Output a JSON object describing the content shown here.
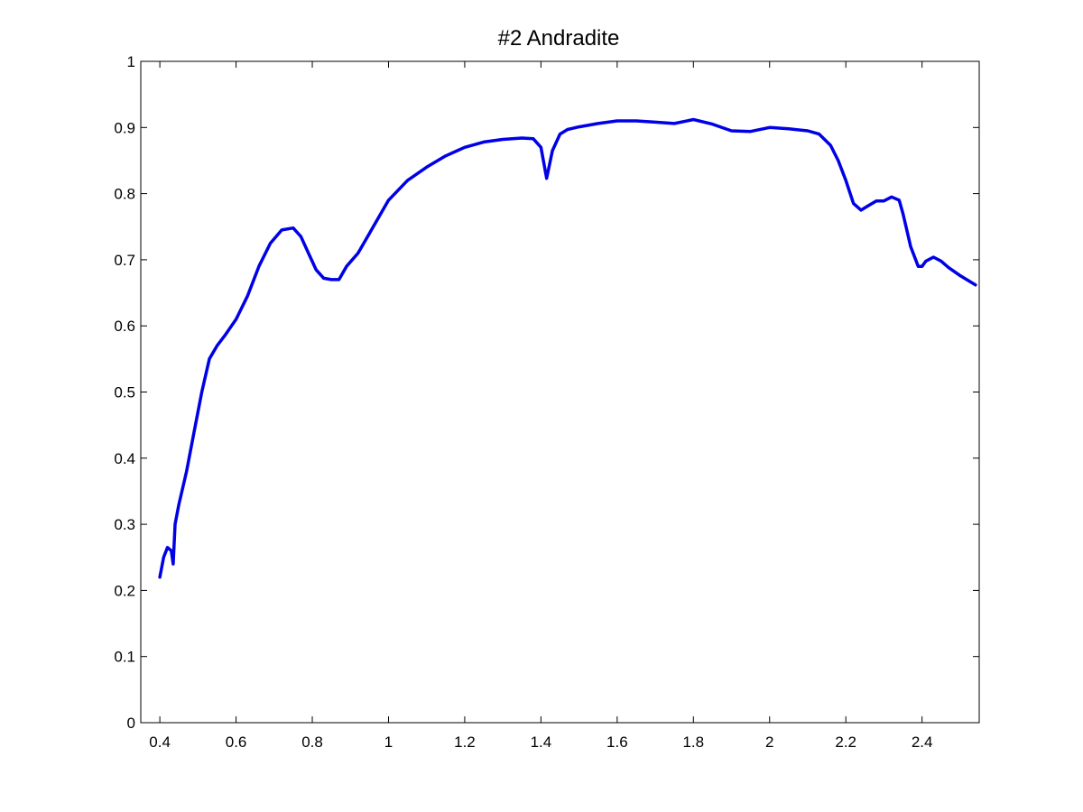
{
  "chart_data": {
    "type": "line",
    "title": "#2 Andradite",
    "xlabel": "",
    "ylabel": "",
    "xlim": [
      0.35,
      2.55
    ],
    "ylim": [
      0,
      1
    ],
    "x_ticks": [
      0.4,
      0.6,
      0.8,
      1,
      1.2,
      1.4,
      1.6,
      1.8,
      2,
      2.2,
      2.4
    ],
    "x_tick_labels": [
      "0.4",
      "0.6",
      "0.8",
      "1",
      "1.2",
      "1.4",
      "1.6",
      "1.8",
      "2",
      "2.2",
      "2.4"
    ],
    "y_ticks": [
      0,
      0.1,
      0.2,
      0.3,
      0.4,
      0.5,
      0.6,
      0.7,
      0.8,
      0.9,
      1
    ],
    "y_tick_labels": [
      "0",
      "0.1",
      "0.2",
      "0.3",
      "0.4",
      "0.5",
      "0.6",
      "0.7",
      "0.8",
      "0.9",
      "1"
    ],
    "grid": false,
    "legend": "none",
    "line_color": "#0000e6",
    "series": [
      {
        "x": [
          0.4,
          0.41,
          0.42,
          0.43,
          0.435,
          0.44,
          0.45,
          0.47,
          0.49,
          0.51,
          0.53,
          0.55,
          0.57,
          0.6,
          0.63,
          0.66,
          0.69,
          0.72,
          0.75,
          0.77,
          0.79,
          0.81,
          0.83,
          0.85,
          0.87,
          0.89,
          0.92,
          0.95,
          1.0,
          1.05,
          1.1,
          1.15,
          1.2,
          1.25,
          1.3,
          1.35,
          1.38,
          1.4,
          1.415,
          1.43,
          1.45,
          1.47,
          1.5,
          1.55,
          1.6,
          1.65,
          1.7,
          1.75,
          1.8,
          1.85,
          1.9,
          1.95,
          2.0,
          2.05,
          2.1,
          2.13,
          2.16,
          2.18,
          2.2,
          2.22,
          2.24,
          2.26,
          2.28,
          2.3,
          2.32,
          2.34,
          2.35,
          2.37,
          2.39,
          2.4,
          2.41,
          2.43,
          2.45,
          2.47,
          2.5,
          2.54
        ],
        "y": [
          0.22,
          0.25,
          0.265,
          0.26,
          0.24,
          0.3,
          0.33,
          0.38,
          0.44,
          0.5,
          0.55,
          0.57,
          0.585,
          0.61,
          0.645,
          0.69,
          0.725,
          0.745,
          0.748,
          0.735,
          0.71,
          0.685,
          0.672,
          0.67,
          0.67,
          0.69,
          0.71,
          0.74,
          0.79,
          0.82,
          0.84,
          0.857,
          0.87,
          0.878,
          0.882,
          0.884,
          0.883,
          0.87,
          0.823,
          0.865,
          0.89,
          0.897,
          0.901,
          0.906,
          0.91,
          0.91,
          0.908,
          0.906,
          0.912,
          0.905,
          0.895,
          0.894,
          0.9,
          0.898,
          0.895,
          0.89,
          0.873,
          0.85,
          0.82,
          0.785,
          0.775,
          0.782,
          0.789,
          0.789,
          0.795,
          0.79,
          0.77,
          0.72,
          0.69,
          0.69,
          0.698,
          0.704,
          0.698,
          0.688,
          0.676,
          0.662
        ]
      }
    ]
  }
}
